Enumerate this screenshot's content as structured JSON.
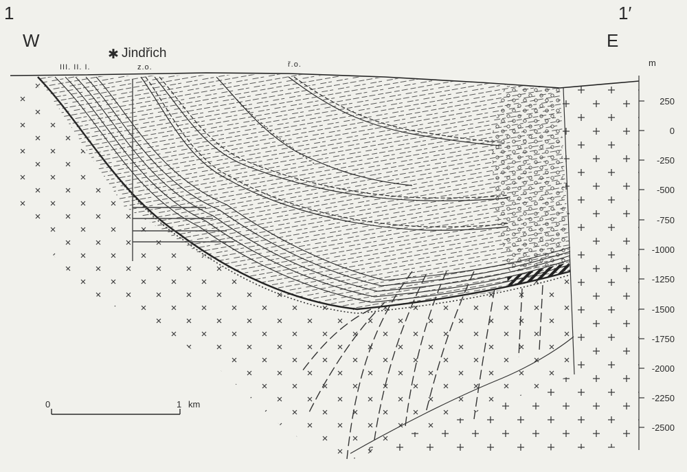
{
  "section": {
    "start_label": "1",
    "end_label": "1′",
    "west_label": "W",
    "east_label": "E"
  },
  "annotations": {
    "seams": "III. II. I.",
    "mine_symbol": "✱",
    "mine_name": "Jindřich",
    "zo": "z.o.",
    "ro": "ř.o."
  },
  "depth_scale": {
    "unit": "m",
    "ticks": [
      "250",
      "0",
      "-250",
      "-500",
      "-750",
      "-1000",
      "-1250",
      "-1500",
      "-1750",
      "-2000",
      "-2250",
      "-2500"
    ]
  },
  "scale_bar": {
    "start": "0",
    "end": "1",
    "unit": "km"
  },
  "colors": {
    "paper": "#f1f1ec",
    "ink": "#2a2a2a"
  }
}
